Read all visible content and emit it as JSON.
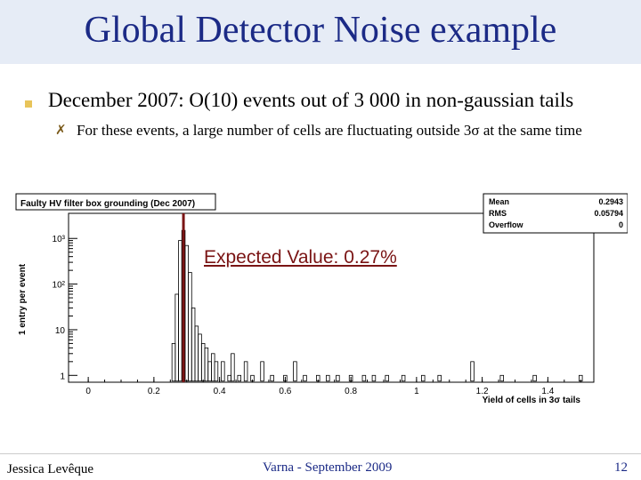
{
  "slide": {
    "title": "Global Detector Noise example",
    "bullet1": "December 2007: O(10) events out of  3 000 in non-gaussian tails",
    "bullet2_mark": "✗",
    "bullet2": "For these events, a large number of cells are fluctuating outside 3σ at the same time",
    "footer_left": "Jessica Levêque",
    "footer_mid": "Varna -  September 2009",
    "footer_right": "12"
  },
  "annotation": {
    "text": "Expected Value: 0.27%",
    "color": "#7a1414",
    "x_value": 0.29
  },
  "chart_data": {
    "type": "bar",
    "title": "Faulty HV filter box grounding (Dec 2007)",
    "xlabel": "Yield of cells in 3σ tails",
    "ylabel": "1 entry per event",
    "xlim": [
      -0.06,
      1.54
    ],
    "ylog": true,
    "yticks": [
      {
        "label": "1",
        "value": 1
      },
      {
        "label": "10",
        "value": 10
      },
      {
        "label": "10²",
        "value": 100
      },
      {
        "label": "10³",
        "value": 1000
      }
    ],
    "xticks": [
      "0",
      "0.2",
      "0.4",
      "0.6",
      "0.8",
      "1",
      "1.2",
      "1.4"
    ],
    "stats": [
      {
        "name": "Mean",
        "value": "0.2943"
      },
      {
        "name": "RMS",
        "value": "0.05794"
      },
      {
        "name": "Overflow",
        "value": "0"
      }
    ],
    "bins": [
      {
        "x": 0.26,
        "y": 5
      },
      {
        "x": 0.27,
        "y": 60
      },
      {
        "x": 0.28,
        "y": 900
      },
      {
        "x": 0.29,
        "y": 1500
      },
      {
        "x": 0.3,
        "y": 700
      },
      {
        "x": 0.31,
        "y": 180
      },
      {
        "x": 0.32,
        "y": 30
      },
      {
        "x": 0.33,
        "y": 12
      },
      {
        "x": 0.34,
        "y": 8
      },
      {
        "x": 0.35,
        "y": 5
      },
      {
        "x": 0.36,
        "y": 4
      },
      {
        "x": 0.37,
        "y": 2
      },
      {
        "x": 0.38,
        "y": 3
      },
      {
        "x": 0.39,
        "y": 2
      },
      {
        "x": 0.41,
        "y": 2
      },
      {
        "x": 0.43,
        "y": 1
      },
      {
        "x": 0.44,
        "y": 3
      },
      {
        "x": 0.46,
        "y": 1
      },
      {
        "x": 0.48,
        "y": 2
      },
      {
        "x": 0.5,
        "y": 1
      },
      {
        "x": 0.53,
        "y": 2
      },
      {
        "x": 0.56,
        "y": 1
      },
      {
        "x": 0.6,
        "y": 1
      },
      {
        "x": 0.63,
        "y": 2
      },
      {
        "x": 0.66,
        "y": 1
      },
      {
        "x": 0.7,
        "y": 1
      },
      {
        "x": 0.73,
        "y": 1
      },
      {
        "x": 0.76,
        "y": 1
      },
      {
        "x": 0.8,
        "y": 1
      },
      {
        "x": 0.84,
        "y": 1
      },
      {
        "x": 0.87,
        "y": 1
      },
      {
        "x": 0.91,
        "y": 1
      },
      {
        "x": 0.96,
        "y": 1
      },
      {
        "x": 1.02,
        "y": 1
      },
      {
        "x": 1.07,
        "y": 1
      },
      {
        "x": 1.17,
        "y": 2
      },
      {
        "x": 1.26,
        "y": 1
      },
      {
        "x": 1.36,
        "y": 1
      },
      {
        "x": 1.5,
        "y": 1
      }
    ]
  }
}
